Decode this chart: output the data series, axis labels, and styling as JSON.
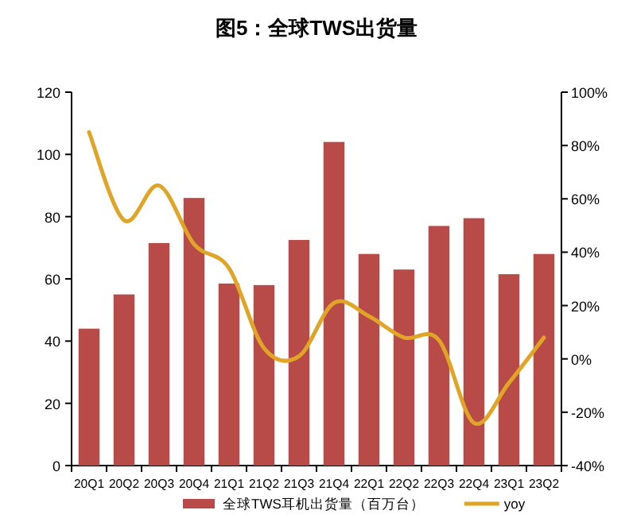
{
  "chart_data": {
    "type": "bar",
    "title": "图5：全球TWS出货量",
    "categories": [
      "20Q1",
      "20Q2",
      "20Q3",
      "20Q4",
      "21Q1",
      "21Q2",
      "21Q3",
      "21Q4",
      "22Q1",
      "22Q2",
      "22Q3",
      "22Q4",
      "23Q1",
      "23Q2"
    ],
    "series": [
      {
        "name": "全球TWS耳机出货量（百万台）",
        "color": "#b84a48",
        "values": [
          44,
          55,
          71.5,
          86,
          58.5,
          58,
          72.5,
          104,
          68,
          63,
          77,
          79.5,
          61.5,
          68
        ]
      },
      {
        "name": "yoy",
        "type": "line",
        "axis": "y2",
        "color": "#e0a526",
        "values": [
          85,
          52,
          65,
          43,
          34,
          4,
          1,
          21,
          16,
          8,
          7,
          -24,
          -9,
          8
        ]
      }
    ],
    "ylim": [
      0,
      120
    ],
    "yticks": [
      0,
      20,
      40,
      60,
      80,
      100,
      120
    ],
    "y2lim": [
      -40,
      100
    ],
    "y2ticks": [
      {
        "value": -40,
        "label": "-40%"
      },
      {
        "value": -20,
        "label": "-20%"
      },
      {
        "value": 0,
        "label": "0%"
      },
      {
        "value": 20,
        "label": "20%"
      },
      {
        "value": 40,
        "label": "40%"
      },
      {
        "value": 60,
        "label": "60%"
      },
      {
        "value": 80,
        "label": "80%"
      },
      {
        "value": 100,
        "label": "100%"
      }
    ],
    "legend": "bottom",
    "grid": false
  }
}
